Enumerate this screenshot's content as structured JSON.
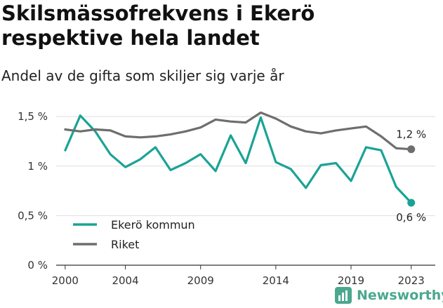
{
  "title": "Skilsmässofrekvens i Ekerö respektive hela landet",
  "subtitle": "Andel av de gifta som skiljer sig varje år",
  "brand": {
    "name": "Newsworthy",
    "icon": "newsworthy-logo-icon",
    "color": "#4aa88f"
  },
  "chart_data": {
    "type": "line",
    "title": "Skilsmässofrekvens i Ekerö respektive hela landet",
    "subtitle": "Andel av de gifta som skiljer sig varje år",
    "x": [
      2000,
      2001,
      2002,
      2003,
      2004,
      2005,
      2006,
      2007,
      2008,
      2009,
      2010,
      2011,
      2012,
      2013,
      2014,
      2015,
      2016,
      2017,
      2018,
      2019,
      2020,
      2021,
      2022,
      2023
    ],
    "series": [
      {
        "name": "Ekerö kommun",
        "color": "#1aa395",
        "values": [
          1.16,
          1.51,
          1.35,
          1.12,
          0.99,
          1.07,
          1.19,
          0.96,
          1.03,
          1.12,
          0.95,
          1.31,
          1.03,
          1.49,
          1.04,
          0.97,
          0.78,
          1.01,
          1.03,
          0.85,
          1.19,
          1.16,
          0.79,
          0.63
        ],
        "end_label": "0,6 %"
      },
      {
        "name": "Riket",
        "color": "#6e6e6e",
        "values": [
          1.37,
          1.35,
          1.37,
          1.36,
          1.3,
          1.29,
          1.3,
          1.32,
          1.35,
          1.39,
          1.47,
          1.45,
          1.44,
          1.54,
          1.48,
          1.4,
          1.35,
          1.33,
          1.36,
          1.38,
          1.4,
          1.3,
          1.18,
          1.17
        ],
        "end_label": "1,2 %"
      }
    ],
    "xticks": [
      2000,
      2004,
      2009,
      2014,
      2019,
      2023
    ],
    "xtick_labels": [
      "2000",
      "2004",
      "2009",
      "2014",
      "2019",
      "2023"
    ],
    "yticks": [
      0,
      0.5,
      1,
      1.5
    ],
    "ytick_labels": [
      "0 %",
      "0,5 %",
      "1 %",
      "1,5 %"
    ],
    "ylim": [
      0,
      1.6
    ],
    "xlim": [
      1999.4,
      2024.6
    ],
    "grid": "horizontal",
    "legend": "bottom-left"
  }
}
